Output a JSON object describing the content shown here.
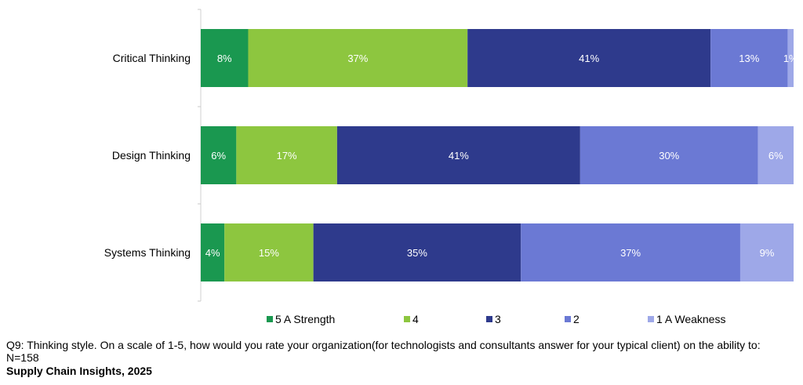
{
  "chart_data": {
    "type": "bar",
    "orientation": "horizontal",
    "stacked": true,
    "categories": [
      "Critical Thinking",
      "Design Thinking",
      "Systems Thinking"
    ],
    "series": [
      {
        "name": "5 A Strength",
        "values": [
          8,
          6,
          4
        ],
        "color": "#1a9850"
      },
      {
        "name": "4",
        "values": [
          37,
          17,
          15
        ],
        "color": "#8dc63f"
      },
      {
        "name": "3",
        "values": [
          41,
          41,
          35
        ],
        "color": "#2e3a8c"
      },
      {
        "name": "2",
        "values": [
          13,
          30,
          37
        ],
        "color": "#6b79d4"
      },
      {
        "name": "1 A Weakness",
        "values": [
          1,
          6,
          9
        ],
        "color": "#9ea8e8"
      }
    ],
    "value_suffix": "%",
    "xlim": [
      0,
      100
    ],
    "legend_position": "bottom",
    "grid": false
  },
  "footnote": {
    "question": "Q9: Thinking style. On a scale of 1-5, how would you rate your organization(for technologists and consultants answer for your typical client) on the ability to:",
    "n": "N=158",
    "source": "Supply Chain Insights, 2025"
  }
}
